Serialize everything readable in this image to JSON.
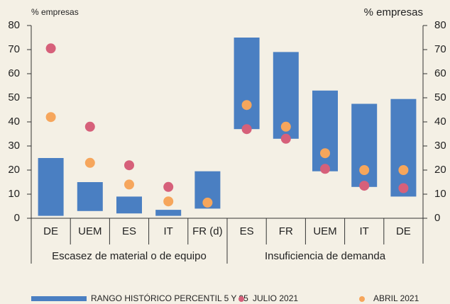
{
  "chart_data": {
    "type": "bar",
    "ylabel": "% empresas",
    "y2label": "% empresas",
    "ylim": [
      0,
      80
    ],
    "yticks": [
      0,
      10,
      20,
      30,
      40,
      50,
      60,
      70,
      80
    ],
    "y2lim": [
      0,
      80
    ],
    "y2ticks": [
      0,
      10,
      20,
      30,
      40,
      50,
      60,
      70,
      80
    ],
    "groups": [
      {
        "name": "Escasez de material o de equipo",
        "categories": [
          "DE",
          "UEM",
          "ES",
          "IT",
          "FR (d)"
        ]
      },
      {
        "name": "Insuficiencia de demanda",
        "categories": [
          "ES",
          "FR",
          "UEM",
          "IT",
          "DE"
        ]
      }
    ],
    "series": [
      {
        "name": "RANGO HISTÓRICO PERCENTIL 5 Y 95",
        "type": "range",
        "color": "#4a7fc2",
        "low": [
          1,
          3,
          2,
          1,
          4,
          37,
          33,
          19.5,
          13,
          9
        ],
        "high": [
          25,
          15,
          9,
          3.5,
          19.5,
          75,
          69,
          53,
          47.5,
          49.5
        ]
      },
      {
        "name": "JULIO 2021",
        "type": "scatter",
        "color": "#d6607a",
        "values": [
          70.5,
          38,
          22,
          13,
          null,
          37,
          33,
          20.5,
          13.5,
          12.5
        ]
      },
      {
        "name": "ABRIL 2021",
        "type": "scatter",
        "color": "#f6a65c",
        "values": [
          42,
          23,
          14,
          7,
          6.5,
          47,
          38,
          27,
          20,
          20
        ]
      }
    ]
  }
}
